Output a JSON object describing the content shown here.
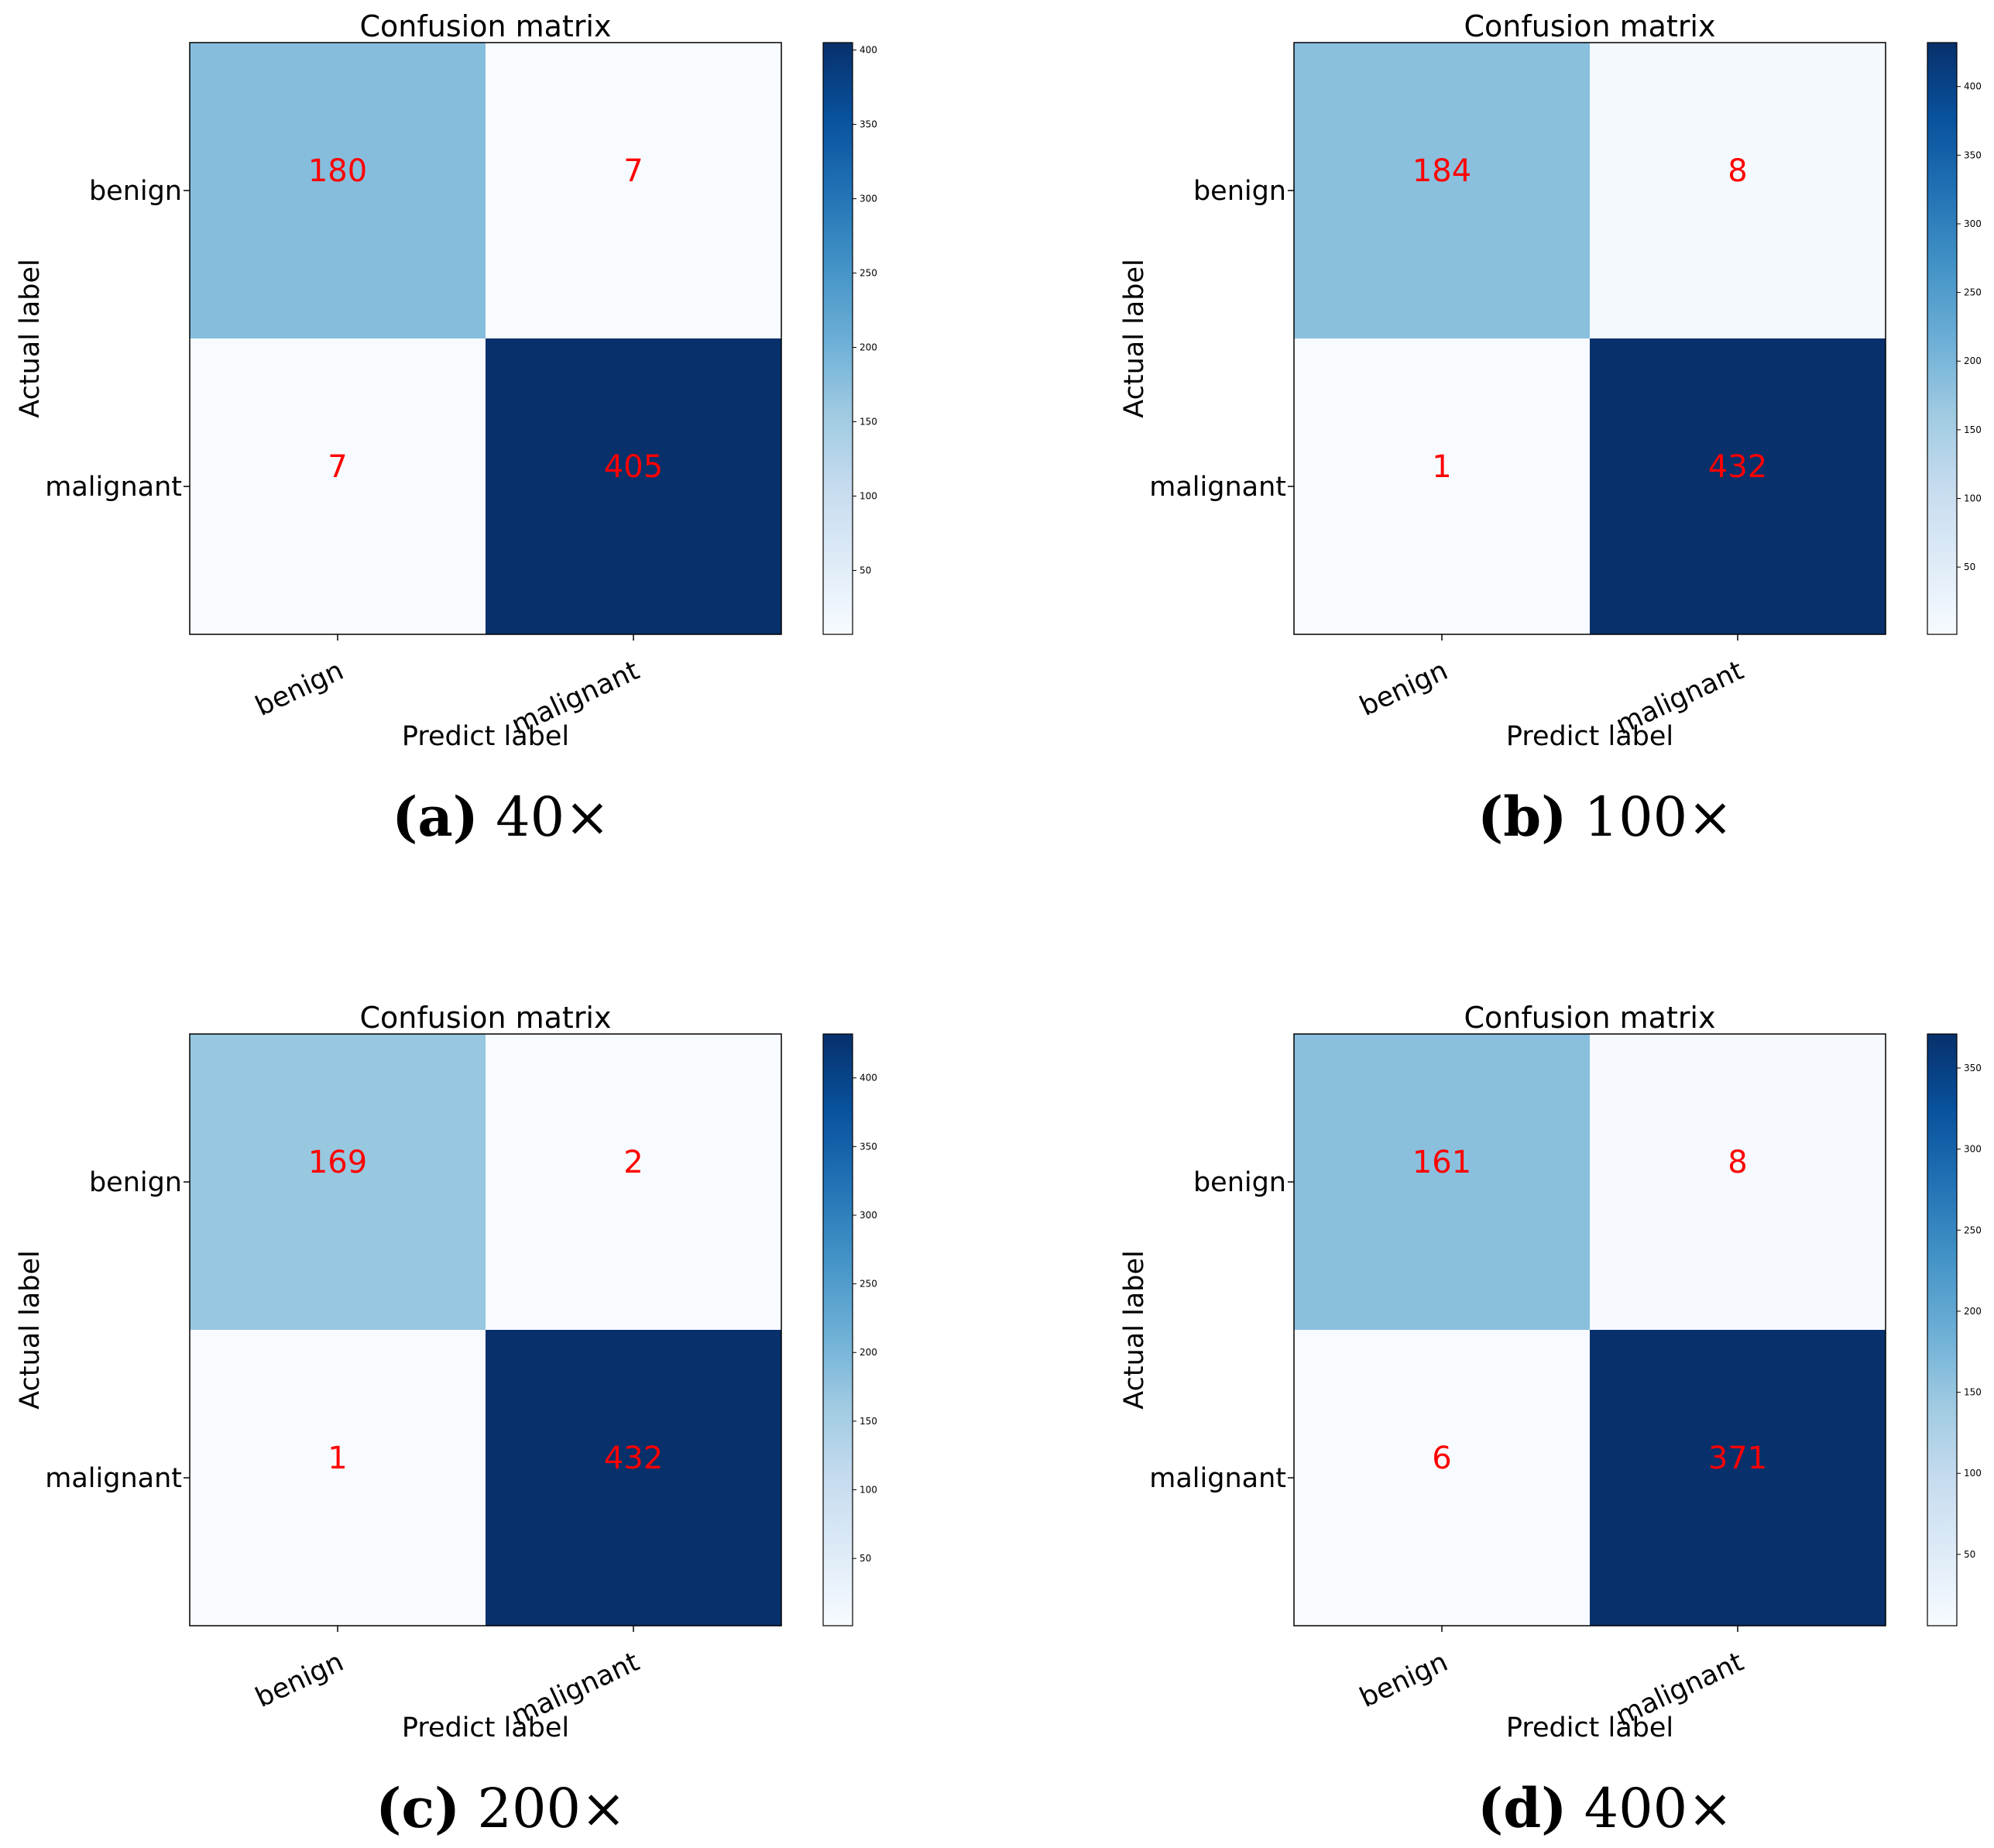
{
  "chart_data": [
    {
      "type": "heatmap",
      "title": "Confusion matrix",
      "xlabel": "Predict label",
      "ylabel": "Actual label",
      "categories": [
        "benign",
        "malignant"
      ],
      "matrix": [
        [
          180,
          7
        ],
        [
          7,
          405
        ]
      ],
      "colorbar": {
        "ticks": [
          50,
          100,
          150,
          200,
          250,
          300,
          350,
          400
        ],
        "range": [
          7,
          405
        ]
      },
      "caption": {
        "letter": "(a)",
        "text": "40×"
      },
      "colormap": "Blues"
    },
    {
      "type": "heatmap",
      "title": "Confusion matrix",
      "xlabel": "Predict label",
      "ylabel": "Actual label",
      "categories": [
        "benign",
        "malignant"
      ],
      "matrix": [
        [
          184,
          8
        ],
        [
          1,
          432
        ]
      ],
      "colorbar": {
        "ticks": [
          50,
          100,
          150,
          200,
          250,
          300,
          350,
          400
        ],
        "range": [
          1,
          432
        ]
      },
      "caption": {
        "letter": "(b)",
        "text": "100×"
      },
      "colormap": "Blues"
    },
    {
      "type": "heatmap",
      "title": "Confusion matrix",
      "xlabel": "Predict label",
      "ylabel": "Actual label",
      "categories": [
        "benign",
        "malignant"
      ],
      "matrix": [
        [
          169,
          2
        ],
        [
          1,
          432
        ]
      ],
      "colorbar": {
        "ticks": [
          50,
          100,
          150,
          200,
          250,
          300,
          350,
          400
        ],
        "range": [
          1,
          432
        ]
      },
      "caption": {
        "letter": "(c)",
        "text": "200×"
      },
      "colormap": "Blues"
    },
    {
      "type": "heatmap",
      "title": "Confusion matrix",
      "xlabel": "Predict label",
      "ylabel": "Actual label",
      "categories": [
        "benign",
        "malignant"
      ],
      "matrix": [
        [
          161,
          8
        ],
        [
          6,
          371
        ]
      ],
      "colorbar": {
        "ticks": [
          50,
          100,
          150,
          200,
          250,
          300,
          350
        ],
        "range": [
          6,
          371
        ]
      },
      "caption": {
        "letter": "(d)",
        "text": "400×"
      },
      "colormap": "Blues"
    }
  ],
  "colors": {
    "cell_text": "#ff0000",
    "axis": "#000000",
    "background": "#ffffff"
  }
}
